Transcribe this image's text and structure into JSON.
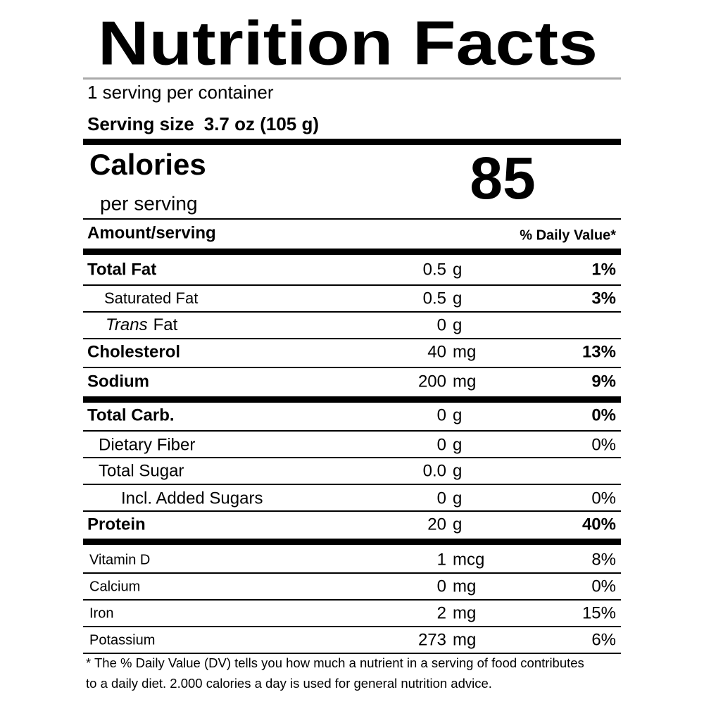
{
  "header": {
    "title": "Nutrition Facts",
    "servings": "1 serving per container",
    "serving_size_label": "Serving size",
    "serving_size": "3.7 oz (105 g)"
  },
  "calories": {
    "label": "Calories",
    "sublabel": "per serving",
    "value": "85"
  },
  "columns": {
    "amount": "Amount/serving",
    "daily_value": "% Daily Value*"
  },
  "rows": [
    {
      "name": "Total Fat",
      "amount": "0.5",
      "unit": "g",
      "dv": "1%"
    },
    {
      "name": "Saturated Fat",
      "amount": "0.5",
      "unit": "g",
      "dv": "3%"
    },
    {
      "name_italic": "Trans",
      "name": "Fat",
      "amount": "0",
      "unit": "g"
    },
    {
      "name": "Cholesterol",
      "amount": "40",
      "unit": "mg",
      "dv": "13%"
    },
    {
      "name": "Sodium",
      "amount": "200",
      "unit": "mg",
      "dv": "9%"
    },
    {
      "name": "Total Carb.",
      "amount": "0",
      "unit": "g",
      "dv": "0%"
    },
    {
      "name": "Dietary Fiber",
      "amount": "0",
      "unit": "g",
      "dv": "0%"
    },
    {
      "name": "Total Sugar",
      "amount": "0.0",
      "unit": "g"
    },
    {
      "name": "Incl. Added Sugars",
      "amount": "0",
      "unit": "g",
      "dv": "0%"
    },
    {
      "name": "Protein",
      "amount": "20",
      "unit": "g",
      "dv": "40%"
    },
    {
      "name": "Vitamin D",
      "amount": "1",
      "unit": "mcg",
      "dv": "8%"
    },
    {
      "name": "Calcium",
      "amount": "0",
      "unit": "mg",
      "dv": "0%"
    },
    {
      "name": "Iron",
      "amount": "2",
      "unit": "mg",
      "dv": "15%"
    },
    {
      "name": "Potassium",
      "amount": "273",
      "unit": "mg",
      "dv": "6%"
    }
  ],
  "footnote": [
    "* The % Daily Value (DV) tells you how much a nutrient in a serving of food contributes",
    "to a daily diet. 2.000 calories a day is used for general nutrition advice."
  ]
}
